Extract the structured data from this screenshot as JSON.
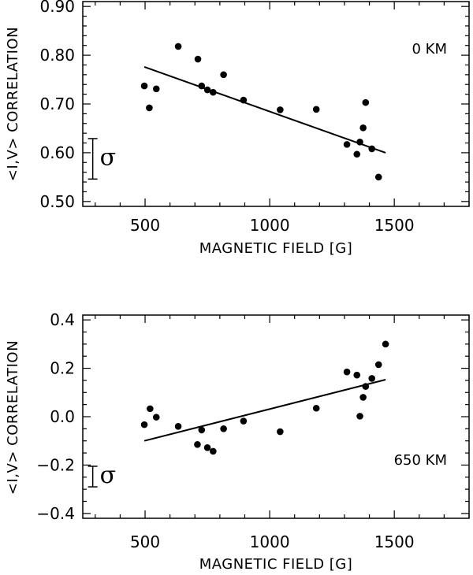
{
  "chart_data": [
    {
      "type": "scatter",
      "panel": "top",
      "xlabel": "MAGNETIC FIELD [G]",
      "ylabel": "<I,V> CORRELATION",
      "annotation": "0 KM",
      "sigma_label": "σ",
      "xlim": [
        250,
        1800
      ],
      "ylim": [
        0.49,
        0.91
      ],
      "x_ticks": [
        500,
        1000,
        1500
      ],
      "y_ticks": [
        0.5,
        0.6,
        0.7,
        0.8,
        0.9
      ],
      "y_tick_labels": [
        "0.50",
        "0.60",
        "0.70",
        "0.80",
        "0.90"
      ],
      "y_minor_step": 0.02,
      "x_minor_step": 100,
      "points": [
        {
          "x": 497,
          "y": 0.737
        },
        {
          "x": 517,
          "y": 0.692
        },
        {
          "x": 545,
          "y": 0.731
        },
        {
          "x": 633,
          "y": 0.818
        },
        {
          "x": 712,
          "y": 0.792
        },
        {
          "x": 727,
          "y": 0.737
        },
        {
          "x": 750,
          "y": 0.729
        },
        {
          "x": 773,
          "y": 0.724
        },
        {
          "x": 815,
          "y": 0.76
        },
        {
          "x": 895,
          "y": 0.708
        },
        {
          "x": 1042,
          "y": 0.688
        },
        {
          "x": 1187,
          "y": 0.689
        },
        {
          "x": 1310,
          "y": 0.617
        },
        {
          "x": 1350,
          "y": 0.597
        },
        {
          "x": 1362,
          "y": 0.622
        },
        {
          "x": 1375,
          "y": 0.651
        },
        {
          "x": 1385,
          "y": 0.703
        },
        {
          "x": 1410,
          "y": 0.608
        },
        {
          "x": 1437,
          "y": 0.55
        }
      ],
      "fit_line": {
        "x": [
          497,
          1465
        ],
        "y": [
          0.776,
          0.6
        ]
      },
      "sigma_bar": {
        "x": 290,
        "y_low": 0.546,
        "y_high": 0.629
      }
    },
    {
      "type": "scatter",
      "panel": "bottom",
      "xlabel": "MAGNETIC FIELD [G]",
      "ylabel": "<I,V> CORRELATION",
      "annotation": "650 KM",
      "sigma_label": "σ",
      "xlim": [
        250,
        1800
      ],
      "ylim": [
        -0.42,
        0.42
      ],
      "x_ticks": [
        500,
        1000,
        1500
      ],
      "y_ticks": [
        -0.4,
        -0.2,
        0.0,
        0.2,
        0.4
      ],
      "y_tick_labels": [
        "−0.4",
        "−0.2",
        "0.0",
        "0.2",
        "0.4"
      ],
      "y_minor_step": 0.05,
      "x_minor_step": 100,
      "points": [
        {
          "x": 497,
          "y": -0.033
        },
        {
          "x": 520,
          "y": 0.033
        },
        {
          "x": 545,
          "y": -0.002
        },
        {
          "x": 633,
          "y": -0.04
        },
        {
          "x": 710,
          "y": -0.115
        },
        {
          "x": 727,
          "y": -0.055
        },
        {
          "x": 750,
          "y": -0.128
        },
        {
          "x": 773,
          "y": -0.143
        },
        {
          "x": 815,
          "y": -0.05
        },
        {
          "x": 895,
          "y": -0.018
        },
        {
          "x": 1042,
          "y": -0.062
        },
        {
          "x": 1187,
          "y": 0.035
        },
        {
          "x": 1310,
          "y": 0.185
        },
        {
          "x": 1350,
          "y": 0.172
        },
        {
          "x": 1362,
          "y": 0.002
        },
        {
          "x": 1375,
          "y": 0.08
        },
        {
          "x": 1385,
          "y": 0.125
        },
        {
          "x": 1410,
          "y": 0.158
        },
        {
          "x": 1437,
          "y": 0.215
        },
        {
          "x": 1465,
          "y": 0.3
        }
      ],
      "fit_line": {
        "x": [
          497,
          1465
        ],
        "y": [
          -0.1,
          0.153
        ]
      },
      "sigma_bar": {
        "x": 290,
        "y_low": -0.29,
        "y_high": -0.205
      }
    }
  ]
}
